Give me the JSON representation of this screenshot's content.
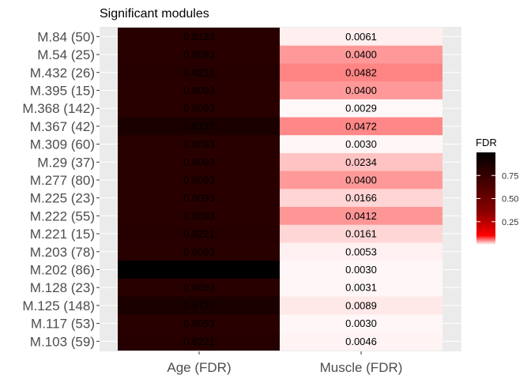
{
  "chart_data": {
    "type": "heatmap",
    "title": "Significant modules",
    "columns": [
      "Age (FDR)",
      "Muscle (FDR)"
    ],
    "rows": [
      "M.84 (50)",
      "M.54 (25)",
      "M.432 (26)",
      "M.395 (15)",
      "M.368 (142)",
      "M.367 (42)",
      "M.309 (60)",
      "M.29 (37)",
      "M.277 (80)",
      "M.225 (23)",
      "M.222 (55)",
      "M.221 (15)",
      "M.203 (78)",
      "M.202 (86)",
      "M.128 (23)",
      "M.125 (148)",
      "M.117 (53)",
      "M.103 (59)"
    ],
    "values": [
      [
        0.8133,
        0.0061
      ],
      [
        0.8093,
        0.04
      ],
      [
        0.8221,
        0.0482
      ],
      [
        0.8093,
        0.04
      ],
      [
        0.8093,
        0.0029
      ],
      [
        0.8737,
        0.0472
      ],
      [
        0.8093,
        0.003
      ],
      [
        0.8093,
        0.0234
      ],
      [
        0.8093,
        0.04
      ],
      [
        0.8093,
        0.0166
      ],
      [
        0.8093,
        0.0412
      ],
      [
        0.8221,
        0.0161
      ],
      [
        0.8093,
        0.0053
      ],
      [
        1.0,
        0.003
      ],
      [
        0.8093,
        0.0031
      ],
      [
        0.8737,
        0.0089
      ],
      [
        0.8093,
        0.003
      ],
      [
        0.8221,
        0.0046
      ]
    ],
    "labels": [
      [
        "0.8133",
        "0.0061"
      ],
      [
        "0.8093",
        "0.0400"
      ],
      [
        "0.8221",
        "0.0482"
      ],
      [
        "0.8093",
        "0.0400"
      ],
      [
        "0.8093",
        "0.0029"
      ],
      [
        "0.8737",
        "0.0472"
      ],
      [
        "0.8093",
        "0.0030"
      ],
      [
        "0.8093",
        "0.0234"
      ],
      [
        "0.8093",
        "0.0400"
      ],
      [
        "0.8093",
        "0.0166"
      ],
      [
        "0.8093",
        "0.0412"
      ],
      [
        "0.8221",
        "0.0161"
      ],
      [
        "0.8093",
        "0.0053"
      ],
      [
        "",
        "0.0030"
      ],
      [
        "0.8093",
        "0.0031"
      ],
      [
        "0.8737",
        "0.0089"
      ],
      [
        "0.8093",
        "0.0030"
      ],
      [
        "0.8221",
        "0.0046"
      ]
    ],
    "legend": {
      "title": "FDR",
      "ticks": [
        0.25,
        0.5,
        0.75
      ],
      "tick_labels": [
        "0.25",
        "0.50",
        "0.75"
      ],
      "range": [
        0,
        1
      ],
      "colors": [
        "#ffffff",
        "#ff0000",
        "#000000"
      ]
    },
    "panel_background": "#ebebeb",
    "grid": true
  }
}
